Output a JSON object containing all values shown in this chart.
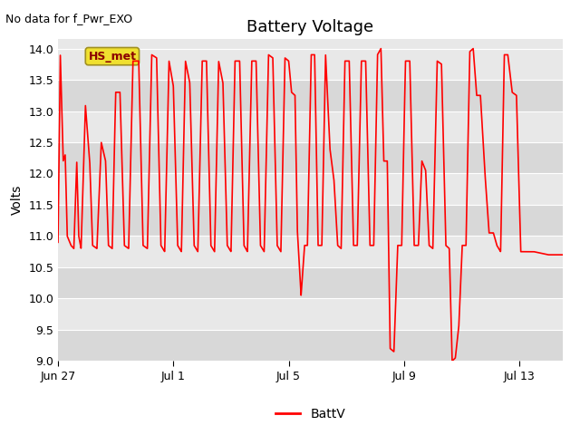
{
  "title": "Battery Voltage",
  "ylabel": "Volts",
  "note": "No data for f_Pwr_EXO",
  "legend_label": "BattV",
  "hs_met_label": "HS_met",
  "line_color": "#ff0000",
  "ylim": [
    9.0,
    14.15
  ],
  "yticks": [
    9.0,
    9.5,
    10.0,
    10.5,
    11.0,
    11.5,
    12.0,
    12.5,
    13.0,
    13.5,
    14.0
  ],
  "xtick_labels": [
    "Jun 27",
    "Jul 1",
    "Jul 5",
    "Jul 9",
    "Jul 13"
  ],
  "xtick_positions": [
    0,
    4,
    8,
    12,
    16
  ],
  "bg_color": "#f0f0f0",
  "plot_bg_color": "#e0e0e0",
  "band_light": "#e8e8e8",
  "band_dark": "#d4d4d4",
  "title_fontsize": 13,
  "label_fontsize": 10,
  "tick_fontsize": 9,
  "note_fontsize": 9,
  "hs_fontsize": 9
}
